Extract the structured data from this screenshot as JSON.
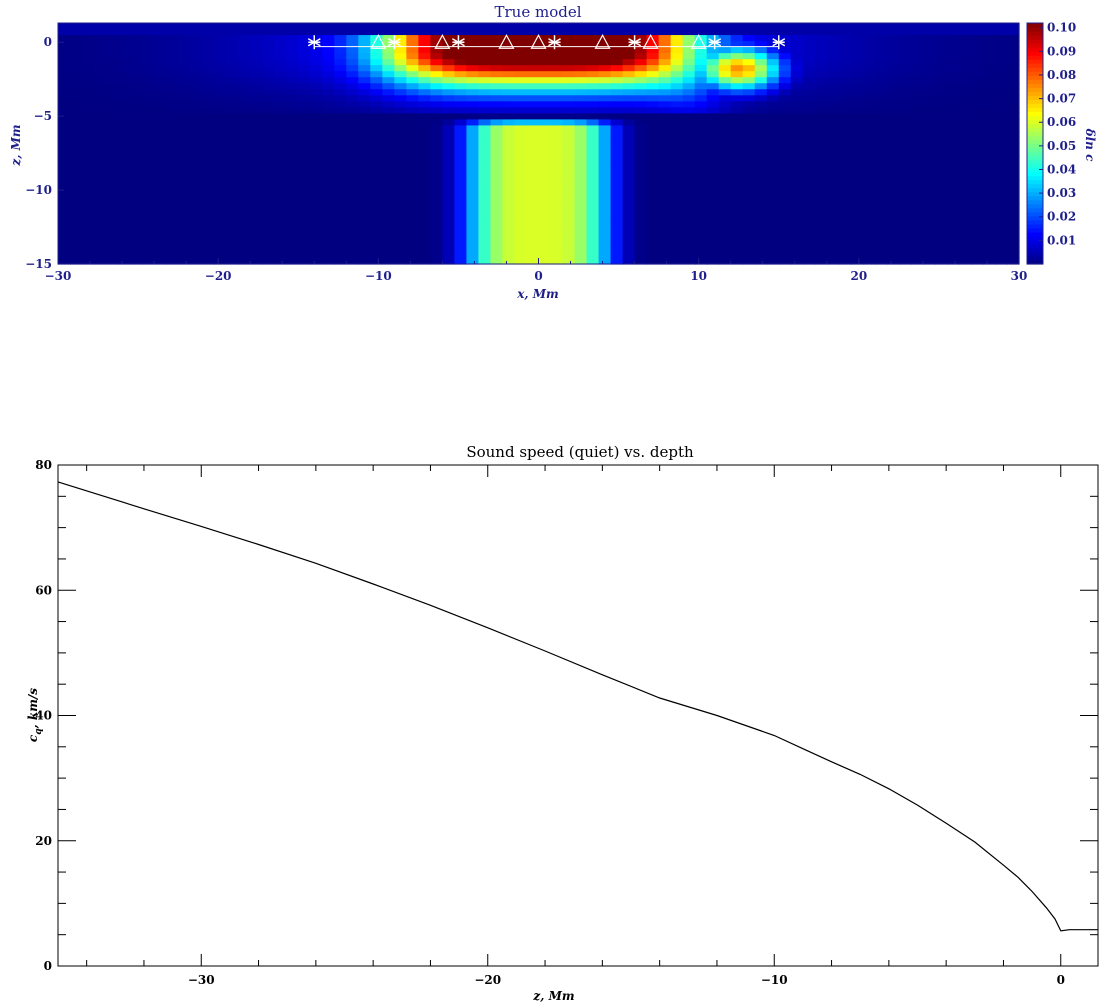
{
  "chart_data": [
    {
      "type": "heatmap",
      "title": "True model",
      "xlabel": "x, Mm",
      "ylabel": "z, Mm",
      "xlim": [
        -30,
        30
      ],
      "ylim": [
        -15,
        1.3
      ],
      "x_ticks": [
        -30,
        -20,
        -10,
        0,
        10,
        20,
        30
      ],
      "y_ticks": [
        0,
        -5,
        -10,
        -15
      ],
      "colorbar": {
        "label": "δln c",
        "range": [
          0,
          0.102
        ],
        "ticks": [
          "0.01",
          "0.02",
          "0.03",
          "0.04",
          "0.05",
          "0.06",
          "0.07",
          "0.08",
          "0.09",
          "0.10"
        ],
        "colormap": "jet"
      },
      "surface_line_z": -0.3,
      "star_markers_x": [
        -14,
        -9,
        -5,
        1,
        6,
        11,
        15
      ],
      "triangle_markers_x": [
        -10,
        -6,
        -2,
        0,
        4,
        7,
        10
      ],
      "markers_z": 0,
      "features": [
        {
          "kind": "near-surface perturbation",
          "z_range": [
            -4,
            0
          ],
          "peak": 0.1,
          "peak_x": [
            -3,
            3
          ]
        },
        {
          "kind": "deep column",
          "x_center": 0,
          "z_range": [
            -15,
            -5
          ],
          "peak": 0.06
        }
      ]
    },
    {
      "type": "line",
      "title": "Sound speed (quiet) vs. depth",
      "xlabel": "z, Mm",
      "ylabel": "c_q, km/s",
      "ylabel_main": "c",
      "ylabel_sub": "q",
      "ylabel_rest": ", km/s",
      "xlim": [
        -35,
        1.3
      ],
      "ylim": [
        0,
        80
      ],
      "x_ticks": [
        -30,
        -20,
        -10,
        0
      ],
      "y_ticks": [
        0,
        20,
        40,
        60,
        80
      ],
      "series": [
        {
          "x": [
            -35,
            -32,
            -30,
            -28,
            -26,
            -24,
            -22,
            -20,
            -18,
            -16,
            -14,
            -12,
            -10,
            -9,
            -8,
            -7,
            -6,
            -5,
            -4,
            -3,
            -2,
            -1.5,
            -1,
            -0.5,
            -0.2,
            0,
            0.3,
            1.3
          ],
          "values": [
            77.3,
            73.0,
            70.2,
            67.3,
            64.3,
            61.0,
            57.6,
            54.0,
            50.3,
            46.5,
            42.8,
            40.0,
            36.8,
            34.7,
            32.6,
            30.6,
            28.3,
            25.7,
            22.8,
            19.8,
            16.1,
            14.2,
            11.9,
            9.3,
            7.5,
            5.6,
            5.8,
            5.8
          ]
        }
      ]
    }
  ]
}
